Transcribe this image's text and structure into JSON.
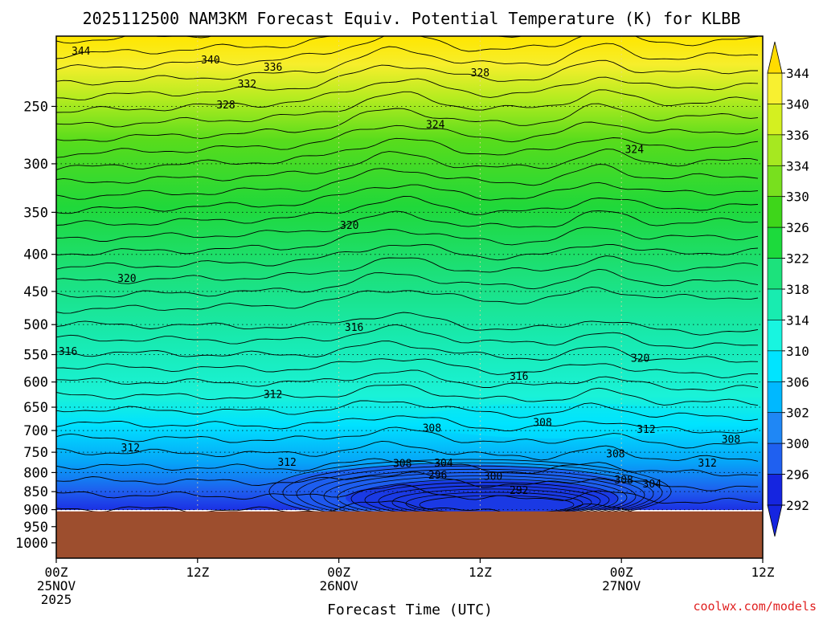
{
  "chart_data": {
    "type": "heatmap",
    "title": "2025112500 NAM3KM Forecast Equiv. Potential Temperature (K) for KLBB",
    "xlabel": "Forecast Time (UTC)",
    "ylabel": "",
    "x_ticks": [
      {
        "hour": 0,
        "lines": [
          "00Z",
          "25NOV",
          "2025"
        ]
      },
      {
        "hour": 12,
        "lines": [
          "12Z"
        ]
      },
      {
        "hour": 24,
        "lines": [
          "00Z",
          "26NOV"
        ]
      },
      {
        "hour": 36,
        "lines": [
          "12Z"
        ]
      },
      {
        "hour": 48,
        "lines": [
          "00Z",
          "27NOV"
        ]
      },
      {
        "hour": 60,
        "lines": [
          "12Z"
        ]
      }
    ],
    "x_range_hours": [
      0,
      60
    ],
    "y_ticks": [
      250,
      300,
      350,
      400,
      450,
      500,
      550,
      600,
      650,
      700,
      750,
      800,
      850,
      900,
      950,
      1000
    ],
    "y_range_hpa": [
      200,
      1050
    ],
    "y_scale": "log-pressure",
    "grid": true,
    "terrain_pressure_hpa": 905,
    "colorbar": {
      "levels": [
        292,
        296,
        300,
        302,
        306,
        310,
        314,
        318,
        322,
        326,
        330,
        334,
        336,
        340,
        344
      ],
      "colors": [
        "#1525e0",
        "#1f60f0",
        "#1f87f5",
        "#00b8ff",
        "#00e4ff",
        "#18f5e0",
        "#18ecb0",
        "#1ce27c",
        "#1cda3c",
        "#3ed61a",
        "#78e01e",
        "#a6e820",
        "#d4f020",
        "#f8f030",
        "#ffdc00"
      ]
    },
    "contour_labels": [
      {
        "text": "344",
        "hour": 2.1,
        "p": 210
      },
      {
        "text": "340",
        "hour": 13.1,
        "p": 216
      },
      {
        "text": "336",
        "hour": 18.4,
        "p": 221
      },
      {
        "text": "332",
        "hour": 16.2,
        "p": 233
      },
      {
        "text": "328",
        "hour": 14.4,
        "p": 249
      },
      {
        "text": "328",
        "hour": 36.0,
        "p": 225
      },
      {
        "text": "324",
        "hour": 32.2,
        "p": 265
      },
      {
        "text": "324",
        "hour": 49.1,
        "p": 287
      },
      {
        "text": "320",
        "hour": 24.9,
        "p": 365
      },
      {
        "text": "320",
        "hour": 6.0,
        "p": 432
      },
      {
        "text": "316",
        "hour": 1.0,
        "p": 545
      },
      {
        "text": "316",
        "hour": 25.3,
        "p": 505
      },
      {
        "text": "316",
        "hour": 39.3,
        "p": 590
      },
      {
        "text": "320",
        "hour": 49.6,
        "p": 557
      },
      {
        "text": "312",
        "hour": 18.4,
        "p": 625
      },
      {
        "text": "312",
        "hour": 6.3,
        "p": 740
      },
      {
        "text": "312",
        "hour": 19.6,
        "p": 775
      },
      {
        "text": "312",
        "hour": 50.1,
        "p": 698
      },
      {
        "text": "312",
        "hour": 55.3,
        "p": 777
      },
      {
        "text": "308",
        "hour": 31.9,
        "p": 695
      },
      {
        "text": "308",
        "hour": 41.3,
        "p": 683
      },
      {
        "text": "308",
        "hour": 47.5,
        "p": 755
      },
      {
        "text": "308",
        "hour": 57.3,
        "p": 721
      },
      {
        "text": "308",
        "hour": 29.4,
        "p": 778
      },
      {
        "text": "308",
        "hour": 48.2,
        "p": 820
      },
      {
        "text": "304",
        "hour": 32.9,
        "p": 777
      },
      {
        "text": "304",
        "hour": 50.6,
        "p": 830
      },
      {
        "text": "296",
        "hour": 32.4,
        "p": 807
      },
      {
        "text": "300",
        "hour": 37.1,
        "p": 810
      },
      {
        "text": "292",
        "hour": 39.3,
        "p": 848
      }
    ]
  },
  "footer": {
    "credit": "coolwx.com/models"
  }
}
